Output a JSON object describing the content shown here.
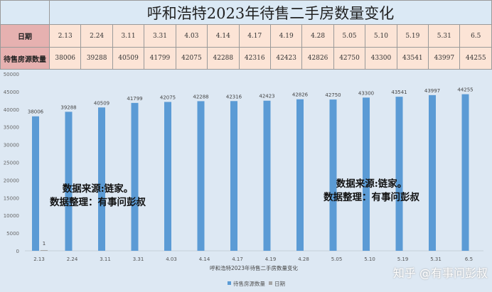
{
  "chart_data": {
    "type": "bar",
    "title": "呼和浩特2023年待售二手房数量变化",
    "xlabel": "呼和浩特2023年待售二手房数量变化",
    "categories": [
      "2.13",
      "2.24",
      "3.11",
      "3.31",
      "4.03",
      "4.14",
      "4.17",
      "4.19",
      "4.28",
      "5.05",
      "5.10",
      "5.19",
      "5.31",
      "6.5"
    ],
    "series": [
      {
        "name": "待售房源数量",
        "color": "#5b9bd5",
        "values": [
          38006,
          39288,
          40509,
          41799,
          42075,
          42288,
          42316,
          42423,
          42826,
          42750,
          43300,
          43541,
          43997,
          44255
        ]
      },
      {
        "name": "日期",
        "color": "#a5a5a5",
        "values": [
          1,
          null,
          null,
          null,
          null,
          null,
          null,
          null,
          null,
          null,
          null,
          null,
          null,
          null
        ]
      }
    ],
    "ylim": [
      0,
      50000
    ],
    "yticks": [
      0,
      5000,
      10000,
      15000,
      20000,
      25000,
      30000,
      35000,
      40000,
      45000,
      50000
    ],
    "legend": "bottom",
    "grid": false
  },
  "table": {
    "row1_header": "日期",
    "row2_header": "待售房源数量"
  },
  "watermarks": {
    "left": [
      "数据来源:链家。",
      "数据整理：有事问彭叔"
    ],
    "right": [
      "数据来源:链家。",
      "数据整理：有事问彭叔"
    ],
    "site": "知乎 @有事问彭叔"
  }
}
